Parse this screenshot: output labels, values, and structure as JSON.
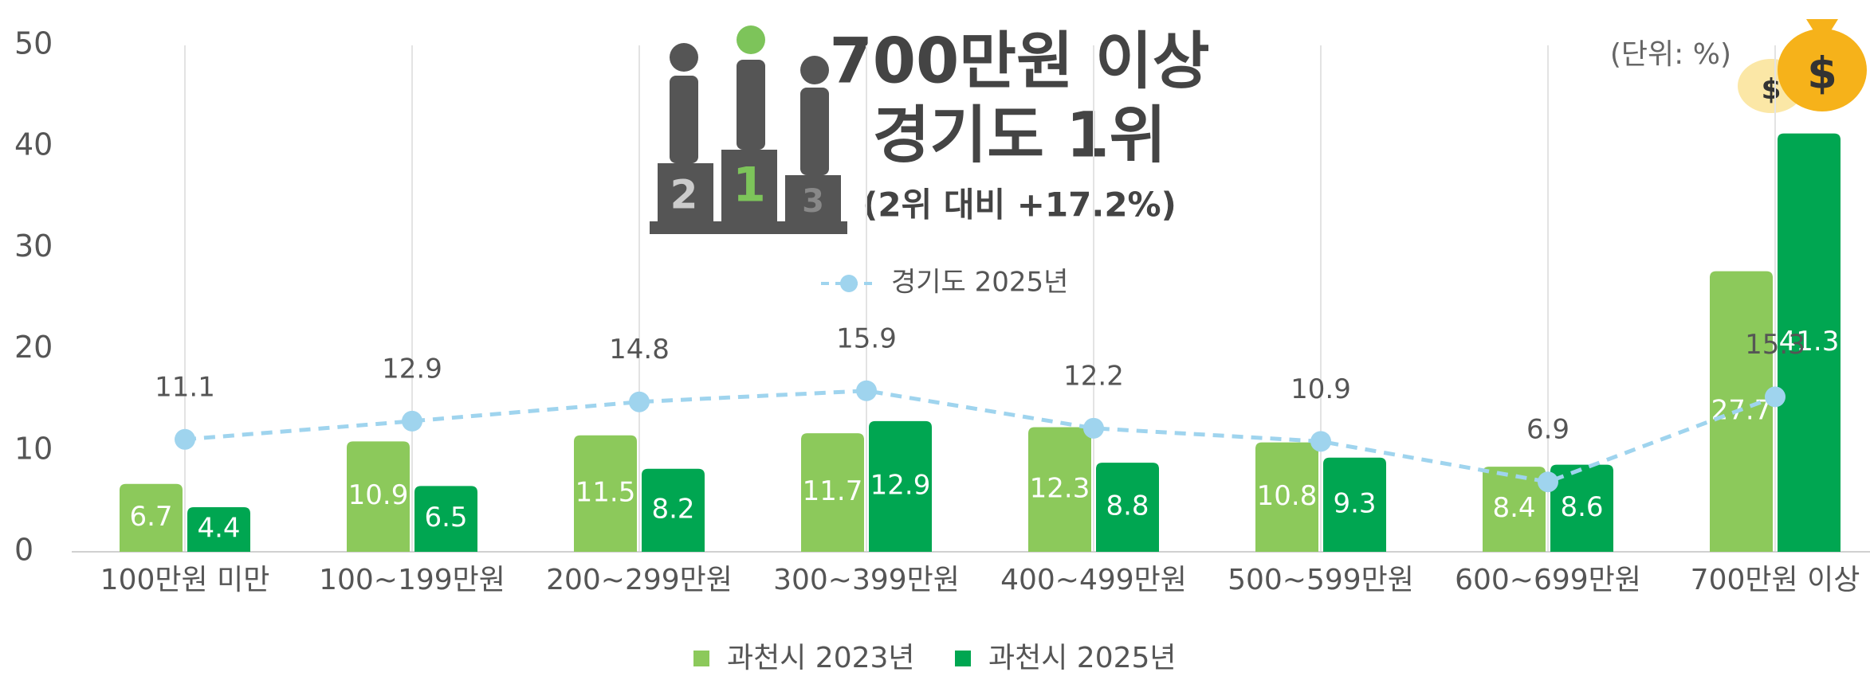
{
  "chart_data": {
    "type": "bar",
    "title": "700만원 이상",
    "subtitle": "경기도 1위",
    "annotations": [
      "(2위 대비 +17.2%)",
      "(단위: %)"
    ],
    "categories": [
      "100만원 미만",
      "100~199만원",
      "200~299만원",
      "300~399만원",
      "400~499만원",
      "500~599만원",
      "600~699만원",
      "700만원 이상"
    ],
    "series": [
      {
        "name": "과천시 2023년",
        "color": "#8cc95b",
        "type": "bar",
        "values": [
          6.7,
          10.9,
          11.5,
          11.7,
          12.3,
          10.8,
          8.4,
          27.7
        ]
      },
      {
        "name": "과천시 2025년",
        "color": "#00a651",
        "type": "bar",
        "values": [
          4.4,
          6.5,
          8.2,
          12.9,
          8.8,
          9.3,
          8.6,
          41.3
        ]
      },
      {
        "name": "경기도 2025년",
        "color": "#9fd4ee",
        "type": "line",
        "values": [
          11.1,
          12.9,
          14.8,
          15.9,
          12.2,
          10.9,
          6.9,
          15.3
        ]
      }
    ],
    "ylim": [
      0,
      50
    ],
    "yticks": [
      0,
      10,
      20,
      30,
      40,
      50
    ],
    "grid": "x"
  }
}
